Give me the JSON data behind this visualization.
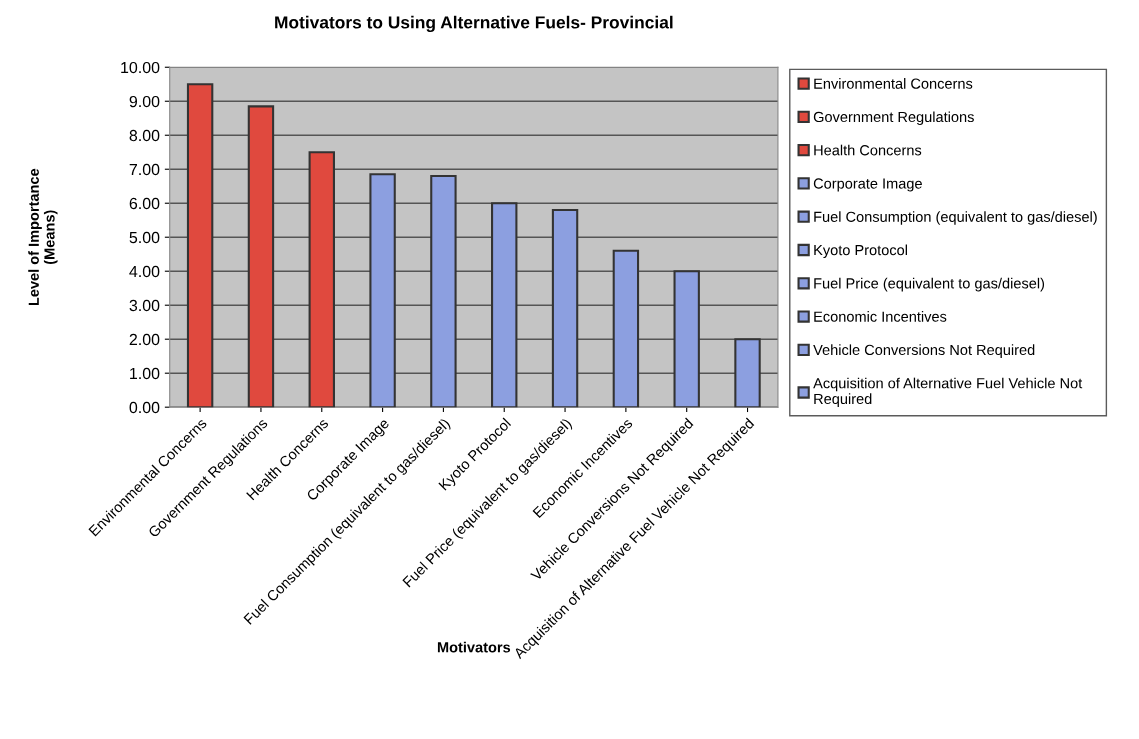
{
  "chart_data": {
    "type": "bar",
    "title": "Motivators to Using Alternative Fuels- Provincial",
    "xlabel": "Motivators",
    "ylabel": "Level of Importance\n(Means)",
    "categories": [
      "Environmental Concerns",
      "Government Regulations",
      "Health Concerns",
      "Corporate Image",
      "Fuel Consumption (equivalent to gas/diesel)",
      "Kyoto Protocol",
      "Fuel Price (equivalent to gas/diesel)",
      "Economic Incentives",
      "Vehicle Conversions Not Required",
      "Acquisition of Alternative Fuel Vehicle Not Required"
    ],
    "series": [
      {
        "name": "Environmental Concerns",
        "color": "#e0493e",
        "values": [
          9.5,
          null,
          null,
          null,
          null,
          null,
          null,
          null,
          null,
          null
        ]
      },
      {
        "name": "Government Regulations",
        "color": "#e0493e",
        "values": [
          null,
          8.85,
          null,
          null,
          null,
          null,
          null,
          null,
          null,
          null
        ]
      },
      {
        "name": "Health Concerns",
        "color": "#e0493e",
        "values": [
          null,
          null,
          7.5,
          null,
          null,
          null,
          null,
          null,
          null,
          null
        ]
      },
      {
        "name": "Corporate Image",
        "color": "#8c9fe0",
        "values": [
          null,
          null,
          null,
          6.85,
          null,
          null,
          null,
          null,
          null,
          null
        ]
      },
      {
        "name": "Fuel Consumption (equivalent to gas/diesel)",
        "color": "#8c9fe0",
        "values": [
          null,
          null,
          null,
          null,
          6.8,
          null,
          null,
          null,
          null,
          null
        ]
      },
      {
        "name": "Kyoto Protocol",
        "color": "#8c9fe0",
        "values": [
          null,
          null,
          null,
          null,
          null,
          6.0,
          null,
          null,
          null,
          null
        ]
      },
      {
        "name": "Fuel Price (equivalent to gas/diesel)",
        "color": "#8c9fe0",
        "values": [
          null,
          null,
          null,
          null,
          null,
          null,
          5.8,
          null,
          null,
          null
        ]
      },
      {
        "name": "Economic Incentives",
        "color": "#8c9fe0",
        "values": [
          null,
          null,
          null,
          null,
          null,
          null,
          null,
          4.6,
          null,
          null
        ]
      },
      {
        "name": "Vehicle Conversions Not Required",
        "color": "#8c9fe0",
        "values": [
          null,
          null,
          null,
          null,
          null,
          null,
          null,
          null,
          4.0,
          null
        ]
      },
      {
        "name": "Acquisition of Alternative Fuel Vehicle Not Required",
        "color": "#8c9fe0",
        "values": [
          null,
          null,
          null,
          null,
          null,
          null,
          null,
          null,
          null,
          2.0
        ]
      }
    ],
    "ylim": [
      0,
      10
    ],
    "yticks": [
      {
        "value": 0,
        "label": "0.00"
      },
      {
        "value": 1,
        "label": "1.00"
      },
      {
        "value": 2,
        "label": "2.00"
      },
      {
        "value": 3,
        "label": "3.00"
      },
      {
        "value": 4,
        "label": "4.00"
      },
      {
        "value": 5,
        "label": "5.00"
      },
      {
        "value": 6,
        "label": "6.00"
      },
      {
        "value": 7,
        "label": "7.00"
      },
      {
        "value": 8,
        "label": "8.00"
      },
      {
        "value": 9,
        "label": "9.00"
      },
      {
        "value": 10,
        "label": "10.00"
      }
    ],
    "grid": "y",
    "legend": "right"
  }
}
